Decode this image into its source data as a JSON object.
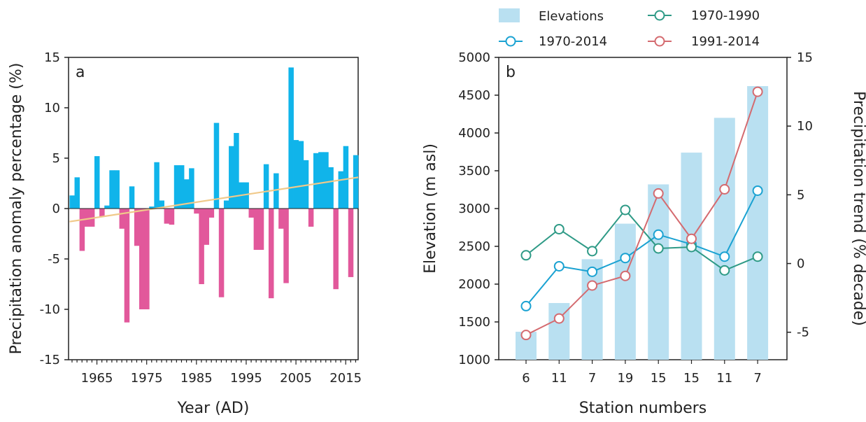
{
  "chart_data": [
    {
      "panel": "a",
      "type": "bar",
      "xlabel": "Year (AD)",
      "ylabel": "Precipitation anomaly percentage (%)",
      "ylim": [
        -15,
        15
      ],
      "yticks": [
        "-15",
        "-10",
        "-5",
        "0",
        "5",
        "10",
        "15"
      ],
      "xticks": [
        "1965",
        "1975",
        "1985",
        "1995",
        "2005",
        "2015"
      ],
      "colors": {
        "positive": "#10b4ea",
        "negative": "#e2589b",
        "trend": "#f0c98a"
      },
      "x": [
        1960,
        1961,
        1962,
        1963,
        1964,
        1965,
        1966,
        1967,
        1968,
        1969,
        1970,
        1971,
        1972,
        1973,
        1974,
        1975,
        1976,
        1977,
        1978,
        1979,
        1980,
        1981,
        1982,
        1983,
        1984,
        1985,
        1986,
        1987,
        1988,
        1989,
        1990,
        1991,
        1992,
        1993,
        1994,
        1995,
        1996,
        1997,
        1998,
        1999,
        2000,
        2001,
        2002,
        2003,
        2004,
        2005,
        2006,
        2007,
        2008,
        2009,
        2010,
        2011,
        2012,
        2013,
        2014,
        2015,
        2016,
        2017
      ],
      "values": [
        1.3,
        3.1,
        -4.2,
        -1.8,
        -1.8,
        5.2,
        -0.8,
        0.3,
        3.8,
        3.8,
        -2.0,
        -11.3,
        2.2,
        -3.7,
        -10.0,
        -10.0,
        0.2,
        4.6,
        0.8,
        -1.5,
        -1.6,
        4.3,
        4.3,
        2.9,
        4.0,
        -0.5,
        -7.5,
        -3.6,
        -0.9,
        8.5,
        -8.8,
        0.8,
        6.2,
        7.5,
        2.6,
        2.6,
        -0.9,
        -4.1,
        -4.1,
        4.4,
        -8.9,
        3.5,
        -2.0,
        -7.4,
        14.0,
        6.8,
        6.7,
        4.8,
        -1.8,
        5.5,
        5.6,
        5.6,
        4.1,
        -8.0,
        3.7,
        6.2,
        -6.8,
        5.3
      ],
      "trend": {
        "x": [
          1960,
          2018
        ],
        "y": [
          -1.3,
          3.1
        ]
      }
    },
    {
      "panel": "b",
      "type": "bar+line",
      "xlabel": "Station numbers",
      "ylabel": "Elevation (m asl)",
      "y2label": "Precipitation trend (% decade)",
      "ylim": [
        1000,
        5000
      ],
      "y2lim": [
        -7,
        15
      ],
      "yticks": [
        "1000",
        "1500",
        "2000",
        "2500",
        "3000",
        "3500",
        "4000",
        "4500",
        "5000"
      ],
      "y2ticks": [
        "-5",
        "0",
        "5",
        "10",
        "15"
      ],
      "categories": [
        "6",
        "11",
        "7",
        "19",
        "15",
        "15",
        "11",
        "7"
      ],
      "bars": {
        "name": "Elevations",
        "color": "#b9e0f1",
        "values": [
          1370,
          1750,
          2330,
          2800,
          3320,
          3740,
          4200,
          4620
        ]
      },
      "series": [
        {
          "name": "1970-2014",
          "color": "#1aa2d2",
          "values": [
            -3.1,
            -0.2,
            -0.6,
            0.4,
            2.1,
            1.4,
            0.5,
            5.3
          ]
        },
        {
          "name": "1970-1990",
          "color": "#2e9a86",
          "values": [
            0.6,
            2.5,
            0.9,
            3.9,
            1.1,
            1.2,
            -0.5,
            0.5
          ]
        },
        {
          "name": "1991-2014",
          "color": "#d46a6f",
          "values": [
            -5.2,
            -4.0,
            -1.6,
            -0.9,
            5.1,
            1.8,
            5.4,
            12.5
          ]
        }
      ]
    }
  ]
}
